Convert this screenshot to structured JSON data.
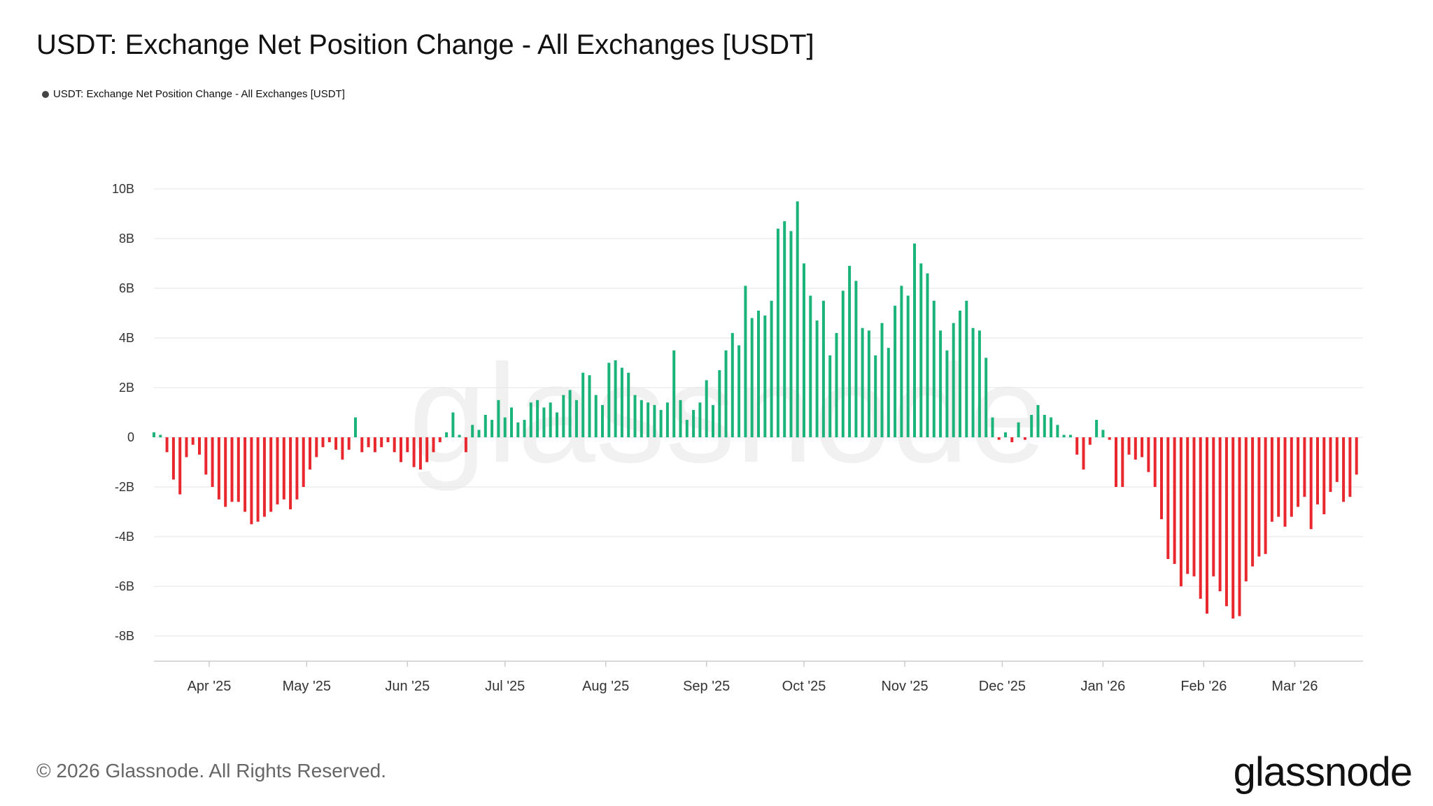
{
  "title": "USDT: Exchange Net Position Change - All Exchanges [USDT]",
  "legend": {
    "label": "USDT: Exchange Net Position Change - All Exchanges [USDT]"
  },
  "footer": {
    "copyright": "© 2026 Glassnode. All Rights Reserved.",
    "logo": "glassnode"
  },
  "watermark": "glassnode",
  "colors": {
    "positive": "#1ab37a",
    "negative": "#e8282e",
    "grid": "#e6e6e6"
  },
  "chart_data": {
    "type": "bar",
    "ylim": [
      -9,
      10
    ],
    "yticks": [
      10,
      8,
      6,
      4,
      2,
      0,
      -2,
      -4,
      -6,
      -8
    ],
    "ytick_labels": [
      "10B",
      "8B",
      "6B",
      "4B",
      "2B",
      "0",
      "-2B",
      "-4B",
      "-6B",
      "-8B"
    ],
    "x_start": "2025-03-15",
    "x_end": "2026-03-22",
    "xticks": [
      {
        "date": "2025-04-01",
        "label": "Apr '25"
      },
      {
        "date": "2025-05-01",
        "label": "May '25"
      },
      {
        "date": "2025-06-01",
        "label": "Jun '25"
      },
      {
        "date": "2025-07-01",
        "label": "Jul '25"
      },
      {
        "date": "2025-08-01",
        "label": "Aug '25"
      },
      {
        "date": "2025-09-01",
        "label": "Sep '25"
      },
      {
        "date": "2025-10-01",
        "label": "Oct '25"
      },
      {
        "date": "2025-11-01",
        "label": "Nov '25"
      },
      {
        "date": "2025-12-01",
        "label": "Dec '25"
      },
      {
        "date": "2026-01-01",
        "label": "Jan '26"
      },
      {
        "date": "2026-02-01",
        "label": "Feb '26"
      },
      {
        "date": "2026-03-01",
        "label": "Mar '26"
      }
    ],
    "units": "B USDT",
    "grid": true,
    "legend_position": "top-left",
    "series": [
      {
        "name": "USDT: Exchange Net Position Change - All Exchanges [USDT]",
        "points": [
          [
            "2025-03-15",
            0.2
          ],
          [
            "2025-03-17",
            0.1
          ],
          [
            "2025-03-19",
            -0.6
          ],
          [
            "2025-03-21",
            -1.7
          ],
          [
            "2025-03-23",
            -2.3
          ],
          [
            "2025-03-25",
            -0.8
          ],
          [
            "2025-03-27",
            -0.3
          ],
          [
            "2025-03-29",
            -0.7
          ],
          [
            "2025-03-31",
            -1.5
          ],
          [
            "2025-04-02",
            -2.0
          ],
          [
            "2025-04-04",
            -2.5
          ],
          [
            "2025-04-06",
            -2.8
          ],
          [
            "2025-04-08",
            -2.6
          ],
          [
            "2025-04-10",
            -2.6
          ],
          [
            "2025-04-12",
            -3.0
          ],
          [
            "2025-04-14",
            -3.5
          ],
          [
            "2025-04-16",
            -3.4
          ],
          [
            "2025-04-18",
            -3.2
          ],
          [
            "2025-04-20",
            -3.0
          ],
          [
            "2025-04-22",
            -2.7
          ],
          [
            "2025-04-24",
            -2.5
          ],
          [
            "2025-04-26",
            -2.9
          ],
          [
            "2025-04-28",
            -2.5
          ],
          [
            "2025-04-30",
            -2.0
          ],
          [
            "2025-05-02",
            -1.3
          ],
          [
            "2025-05-04",
            -0.8
          ],
          [
            "2025-05-06",
            -0.4
          ],
          [
            "2025-05-08",
            -0.2
          ],
          [
            "2025-05-10",
            -0.5
          ],
          [
            "2025-05-12",
            -0.9
          ],
          [
            "2025-05-14",
            -0.5
          ],
          [
            "2025-05-16",
            0.8
          ],
          [
            "2025-05-18",
            -0.6
          ],
          [
            "2025-05-20",
            -0.4
          ],
          [
            "2025-05-22",
            -0.6
          ],
          [
            "2025-05-24",
            -0.4
          ],
          [
            "2025-05-26",
            -0.2
          ],
          [
            "2025-05-28",
            -0.6
          ],
          [
            "2025-05-30",
            -1.0
          ],
          [
            "2025-06-01",
            -0.6
          ],
          [
            "2025-06-03",
            -1.2
          ],
          [
            "2025-06-05",
            -1.3
          ],
          [
            "2025-06-07",
            -1.0
          ],
          [
            "2025-06-09",
            -0.6
          ],
          [
            "2025-06-11",
            -0.2
          ],
          [
            "2025-06-13",
            0.2
          ],
          [
            "2025-06-15",
            1.0
          ],
          [
            "2025-06-17",
            0.1
          ],
          [
            "2025-06-19",
            -0.6
          ],
          [
            "2025-06-21",
            0.5
          ],
          [
            "2025-06-23",
            0.3
          ],
          [
            "2025-06-25",
            0.9
          ],
          [
            "2025-06-27",
            0.7
          ],
          [
            "2025-06-29",
            1.5
          ],
          [
            "2025-07-01",
            0.8
          ],
          [
            "2025-07-03",
            1.2
          ],
          [
            "2025-07-05",
            0.6
          ],
          [
            "2025-07-07",
            0.7
          ],
          [
            "2025-07-09",
            1.4
          ],
          [
            "2025-07-11",
            1.5
          ],
          [
            "2025-07-13",
            1.2
          ],
          [
            "2025-07-15",
            1.4
          ],
          [
            "2025-07-17",
            1.0
          ],
          [
            "2025-07-19",
            1.7
          ],
          [
            "2025-07-21",
            1.9
          ],
          [
            "2025-07-23",
            1.5
          ],
          [
            "2025-07-25",
            2.6
          ],
          [
            "2025-07-27",
            2.5
          ],
          [
            "2025-07-29",
            1.7
          ],
          [
            "2025-07-31",
            1.3
          ],
          [
            "2025-08-02",
            3.0
          ],
          [
            "2025-08-04",
            3.1
          ],
          [
            "2025-08-06",
            2.8
          ],
          [
            "2025-08-08",
            2.6
          ],
          [
            "2025-08-10",
            1.7
          ],
          [
            "2025-08-12",
            1.5
          ],
          [
            "2025-08-14",
            1.4
          ],
          [
            "2025-08-16",
            1.3
          ],
          [
            "2025-08-18",
            1.1
          ],
          [
            "2025-08-20",
            1.4
          ],
          [
            "2025-08-22",
            3.5
          ],
          [
            "2025-08-24",
            1.5
          ],
          [
            "2025-08-26",
            0.7
          ],
          [
            "2025-08-28",
            1.1
          ],
          [
            "2025-08-30",
            1.4
          ],
          [
            "2025-09-01",
            2.3
          ],
          [
            "2025-09-03",
            1.3
          ],
          [
            "2025-09-05",
            2.7
          ],
          [
            "2025-09-07",
            3.5
          ],
          [
            "2025-09-09",
            4.2
          ],
          [
            "2025-09-11",
            3.7
          ],
          [
            "2025-09-13",
            6.1
          ],
          [
            "2025-09-15",
            4.8
          ],
          [
            "2025-09-17",
            5.1
          ],
          [
            "2025-09-19",
            4.9
          ],
          [
            "2025-09-21",
            5.5
          ],
          [
            "2025-09-23",
            8.4
          ],
          [
            "2025-09-25",
            8.7
          ],
          [
            "2025-09-27",
            8.3
          ],
          [
            "2025-09-29",
            9.5
          ],
          [
            "2025-10-01",
            7.0
          ],
          [
            "2025-10-03",
            5.7
          ],
          [
            "2025-10-05",
            4.7
          ],
          [
            "2025-10-07",
            5.5
          ],
          [
            "2025-10-09",
            3.3
          ],
          [
            "2025-10-11",
            4.2
          ],
          [
            "2025-10-13",
            5.9
          ],
          [
            "2025-10-15",
            6.9
          ],
          [
            "2025-10-17",
            6.3
          ],
          [
            "2025-10-19",
            4.4
          ],
          [
            "2025-10-21",
            4.3
          ],
          [
            "2025-10-23",
            3.3
          ],
          [
            "2025-10-25",
            4.6
          ],
          [
            "2025-10-27",
            3.6
          ],
          [
            "2025-10-29",
            5.3
          ],
          [
            "2025-10-31",
            6.1
          ],
          [
            "2025-11-02",
            5.7
          ],
          [
            "2025-11-04",
            7.8
          ],
          [
            "2025-11-06",
            7.0
          ],
          [
            "2025-11-08",
            6.6
          ],
          [
            "2025-11-10",
            5.5
          ],
          [
            "2025-11-12",
            4.3
          ],
          [
            "2025-11-14",
            3.5
          ],
          [
            "2025-11-16",
            4.6
          ],
          [
            "2025-11-18",
            5.1
          ],
          [
            "2025-11-20",
            5.5
          ],
          [
            "2025-11-22",
            4.4
          ],
          [
            "2025-11-24",
            4.3
          ],
          [
            "2025-11-26",
            3.2
          ],
          [
            "2025-11-28",
            0.8
          ],
          [
            "2025-11-30",
            -0.1
          ],
          [
            "2025-12-02",
            0.2
          ],
          [
            "2025-12-04",
            -0.2
          ],
          [
            "2025-12-06",
            0.6
          ],
          [
            "2025-12-08",
            -0.1
          ],
          [
            "2025-12-10",
            0.9
          ],
          [
            "2025-12-12",
            1.3
          ],
          [
            "2025-12-14",
            0.9
          ],
          [
            "2025-12-16",
            0.8
          ],
          [
            "2025-12-18",
            0.5
          ],
          [
            "2025-12-20",
            0.1
          ],
          [
            "2025-12-22",
            0.1
          ],
          [
            "2025-12-24",
            -0.7
          ],
          [
            "2025-12-26",
            -1.3
          ],
          [
            "2025-12-28",
            -0.3
          ],
          [
            "2025-12-30",
            0.7
          ],
          [
            "2026-01-01",
            0.3
          ],
          [
            "2026-01-03",
            -0.1
          ],
          [
            "2026-01-05",
            -2.0
          ],
          [
            "2026-01-07",
            -2.0
          ],
          [
            "2026-01-09",
            -0.7
          ],
          [
            "2026-01-11",
            -0.9
          ],
          [
            "2026-01-13",
            -0.8
          ],
          [
            "2026-01-15",
            -1.4
          ],
          [
            "2026-01-17",
            -2.0
          ],
          [
            "2026-01-19",
            -3.3
          ],
          [
            "2026-01-21",
            -4.9
          ],
          [
            "2026-01-23",
            -5.1
          ],
          [
            "2026-01-25",
            -6.0
          ],
          [
            "2026-01-27",
            -5.5
          ],
          [
            "2026-01-29",
            -5.6
          ],
          [
            "2026-01-31",
            -6.5
          ],
          [
            "2026-02-02",
            -7.1
          ],
          [
            "2026-02-04",
            -5.6
          ],
          [
            "2026-02-06",
            -6.2
          ],
          [
            "2026-02-08",
            -6.8
          ],
          [
            "2026-02-10",
            -7.3
          ],
          [
            "2026-02-12",
            -7.2
          ],
          [
            "2026-02-14",
            -5.8
          ],
          [
            "2026-02-16",
            -5.2
          ],
          [
            "2026-02-18",
            -4.8
          ],
          [
            "2026-02-20",
            -4.7
          ],
          [
            "2026-02-22",
            -3.4
          ],
          [
            "2026-02-24",
            -3.2
          ],
          [
            "2026-02-26",
            -3.6
          ],
          [
            "2026-02-28",
            -3.2
          ],
          [
            "2026-03-02",
            -2.8
          ],
          [
            "2026-03-04",
            -2.4
          ],
          [
            "2026-03-06",
            -3.7
          ],
          [
            "2026-03-08",
            -2.7
          ],
          [
            "2026-03-10",
            -3.1
          ],
          [
            "2026-03-12",
            -2.2
          ],
          [
            "2026-03-14",
            -1.8
          ],
          [
            "2026-03-16",
            -2.6
          ],
          [
            "2026-03-18",
            -2.4
          ],
          [
            "2026-03-20",
            -1.5
          ]
        ]
      }
    ]
  }
}
